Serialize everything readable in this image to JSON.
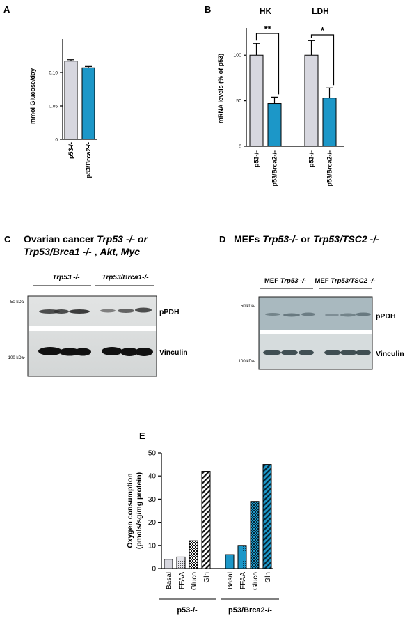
{
  "panels": {
    "A": {
      "letter": "A",
      "chart_data": {
        "type": "bar",
        "categories": [
          "p53-/-",
          "p53/Brca2-/-"
        ],
        "values": [
          0.117,
          0.107
        ],
        "errors": [
          0.002,
          0.002
        ],
        "ylabel": "mmol Glucose/day",
        "ylim": [
          0,
          0.15
        ],
        "yticks": [
          0,
          0.05,
          0.1
        ],
        "ytick_labels": [
          "0",
          "0.05",
          "0.10"
        ],
        "colors": [
          "#d7d7df",
          "#1c97c8"
        ]
      }
    },
    "B": {
      "letter": "B",
      "chart_data": {
        "type": "bar",
        "groups": [
          {
            "name": "HK",
            "categories": [
              "p53-/-",
              "p53/Brca2-/-"
            ],
            "values": [
              100,
              47
            ],
            "errors": [
              13,
              7
            ],
            "significance": "**"
          },
          {
            "name": "LDH",
            "categories": [
              "p53-/-",
              "p53/Brca2-/-"
            ],
            "values": [
              100,
              53
            ],
            "errors": [
              16,
              11
            ],
            "significance": "*"
          }
        ],
        "ylabel": "mRNA levels (% of p53)",
        "ylim": [
          0,
          130
        ],
        "yticks": [
          0,
          50,
          100
        ],
        "ytick_labels": [
          "0",
          "50",
          "100"
        ],
        "colors": [
          "#d7d7df",
          "#1c97c8"
        ]
      }
    },
    "C": {
      "letter": "C",
      "title_line1_plain": "Ovarian cancer ",
      "title_line1_italic": "Trp53 -/- or",
      "title_line2_italic1": "Trp53/Brca1 -/-",
      "title_line2_plain": " , ",
      "title_line2_italic2": "Akt, Myc",
      "group1": "Trp53 -/-",
      "group2": "Trp53/Brca1-/-",
      "marker_top": "50 kDa-",
      "marker_bottom": "100 kDa-",
      "band_top": "pPDH",
      "band_bottom": "Vinculin"
    },
    "D": {
      "letter": "D",
      "title_plain1": "MEFs ",
      "title_italic1": "Trp53-/-",
      "title_plain2": " or ",
      "title_italic2": "Trp53/TSC2 -/-",
      "group1_plain": "MEF ",
      "group1_italic": "Trp53 -/-",
      "group2_plain": "MEF ",
      "group2_italic": "Trp53/TSC2 -/-",
      "marker_top": "50 kDa-",
      "marker_bottom": "100 kDa-",
      "band_top": "pPDH",
      "band_bottom": "Vinculin"
    },
    "E": {
      "letter": "E",
      "chart_data": {
        "type": "bar",
        "groups": [
          {
            "name": "p53-/-",
            "categories": [
              "Basal",
              "FFAA",
              "Gluco",
              "Gln"
            ],
            "values": [
              4,
              5,
              12,
              42
            ]
          },
          {
            "name": "p53/Brca2-/-",
            "categories": [
              "Basal",
              "FFAA",
              "Gluco",
              "Gln"
            ],
            "values": [
              6,
              10,
              29,
              45
            ]
          }
        ],
        "ylabel_line1": "Oxygen consumption",
        "ylabel_line2": "(pmols/sg/mg protein)",
        "ylim": [
          0,
          50
        ],
        "yticks": [
          0,
          10,
          20,
          30,
          40,
          50
        ],
        "ytick_labels": [
          "0",
          "10",
          "20",
          "30",
          "40",
          "50"
        ],
        "fill_patterns": [
          "solid",
          "dots",
          "checker",
          "diagonal"
        ],
        "colors": {
          "p53-/-": "#d7d7df",
          "p53/Brca2-/-": "#1c97c8"
        }
      }
    }
  }
}
